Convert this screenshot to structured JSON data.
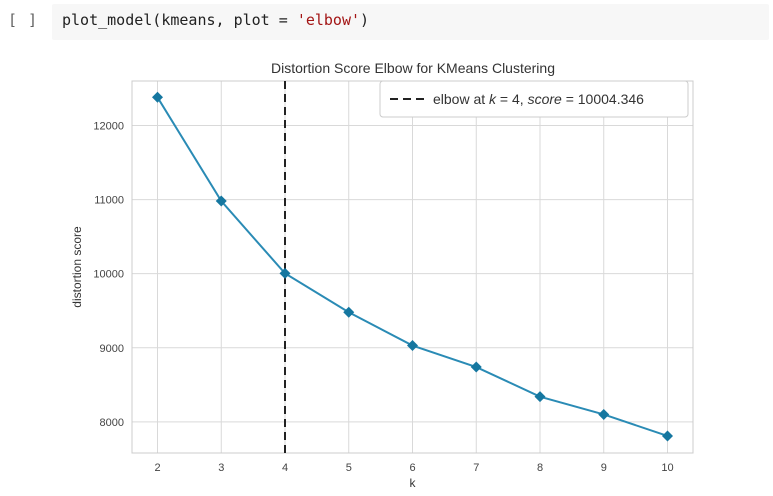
{
  "cell": {
    "run_indicator": "[ ]",
    "code": {
      "fn": "plot_model(kmeans, plot = ",
      "arg": "'elbow'",
      "close": ")"
    }
  },
  "chart_data": {
    "type": "line",
    "title": "Distortion Score Elbow for KMeans Clustering",
    "xlabel": "k",
    "ylabel": "distortion score",
    "x": [
      2,
      3,
      4,
      5,
      6,
      7,
      8,
      9,
      10
    ],
    "series": [
      {
        "values": [
          12380,
          10980,
          10004,
          9480,
          9030,
          8740,
          8340,
          8100,
          7810
        ]
      }
    ],
    "xlim": [
      1.6,
      10.4
    ],
    "ylim": [
      7580,
      12600
    ],
    "xticks": [
      2,
      3,
      4,
      5,
      6,
      7,
      8,
      9,
      10
    ],
    "yticks": [
      8000,
      9000,
      10000,
      11000,
      12000
    ],
    "grid": true,
    "elbow": {
      "k": 4,
      "legend_prefix": "elbow at ",
      "legend_k": "k",
      "legend_eq1": " = 4, ",
      "legend_score": "score",
      "legend_eq2": " = 10004.346"
    },
    "legend_placement": "top-right",
    "colors": {
      "line": "#2a8bb5",
      "marker": "#1577a0",
      "elbow": "#222222",
      "grid": "#d9d9d9",
      "frame": "#cccccc"
    }
  }
}
